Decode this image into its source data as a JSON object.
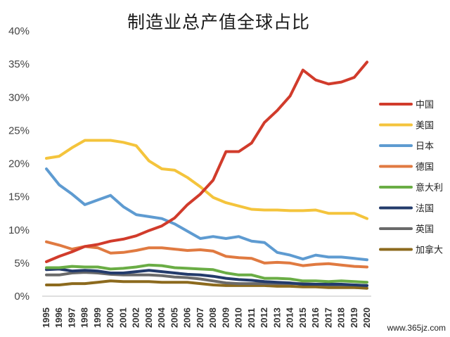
{
  "chart_data": {
    "type": "line",
    "title": "制造业总产值全球占比",
    "xlabel": "",
    "ylabel": "",
    "x": [
      "1995",
      "1996",
      "1997",
      "1998",
      "1999",
      "2000",
      "2001",
      "2002",
      "2003",
      "2004",
      "2005",
      "2006",
      "2007",
      "2008",
      "2009",
      "2010",
      "2011",
      "2012",
      "2013",
      "2014",
      "2015",
      "2016",
      "2017",
      "2018",
      "2019",
      "2020"
    ],
    "ylim": [
      0,
      40
    ],
    "yticks": [
      "0%",
      "5%",
      "10%",
      "15%",
      "20%",
      "25%",
      "30%",
      "35%",
      "40%"
    ],
    "grid": false,
    "legend_position": "right",
    "series": [
      {
        "name": "中国",
        "color": "#d13b2b",
        "values": [
          5.2,
          6.0,
          6.7,
          7.5,
          7.8,
          8.3,
          8.6,
          9.1,
          9.9,
          10.6,
          11.8,
          13.8,
          15.4,
          17.5,
          21.8,
          21.8,
          23.1,
          26.2,
          28.0,
          30.2,
          34.1,
          32.6,
          32.0,
          32.3,
          33.0,
          35.3
        ]
      },
      {
        "name": "美国",
        "color": "#f4c43c",
        "values": [
          20.8,
          21.1,
          22.4,
          23.5,
          23.5,
          23.5,
          23.2,
          22.7,
          20.4,
          19.2,
          19.0,
          17.9,
          16.5,
          14.9,
          14.1,
          13.6,
          13.1,
          13.0,
          13.0,
          12.9,
          12.9,
          13.0,
          12.5,
          12.5,
          12.5,
          11.7
        ]
      },
      {
        "name": "日本",
        "color": "#5e9bd1",
        "values": [
          19.2,
          16.8,
          15.4,
          13.8,
          14.5,
          15.2,
          13.5,
          12.3,
          12.0,
          11.7,
          10.9,
          9.8,
          8.7,
          9.0,
          8.7,
          9.0,
          8.3,
          8.1,
          6.6,
          6.2,
          5.6,
          6.2,
          5.9,
          5.9,
          5.7,
          5.5
        ]
      },
      {
        "name": "德国",
        "color": "#e07a41",
        "values": [
          8.2,
          7.7,
          7.1,
          7.5,
          7.3,
          6.5,
          6.6,
          6.9,
          7.3,
          7.3,
          7.1,
          6.9,
          7.0,
          6.8,
          6.0,
          5.8,
          5.7,
          5.0,
          5.1,
          5.0,
          4.6,
          4.8,
          4.9,
          4.7,
          4.5,
          4.4
        ]
      },
      {
        "name": "意大利",
        "color": "#6aad45",
        "values": [
          4.3,
          4.3,
          4.5,
          4.4,
          4.4,
          4.1,
          4.2,
          4.4,
          4.7,
          4.6,
          4.3,
          4.2,
          4.1,
          4.0,
          3.5,
          3.2,
          3.2,
          2.7,
          2.7,
          2.6,
          2.3,
          2.3,
          2.2,
          2.3,
          2.2,
          2.1
        ]
      },
      {
        "name": "法国",
        "color": "#233b6b",
        "values": [
          4.0,
          4.1,
          3.8,
          3.9,
          3.8,
          3.5,
          3.5,
          3.7,
          3.9,
          3.7,
          3.5,
          3.3,
          3.2,
          3.0,
          2.7,
          2.5,
          2.4,
          2.2,
          2.1,
          2.0,
          1.8,
          1.8,
          1.8,
          1.8,
          1.7,
          1.6
        ]
      },
      {
        "name": "英国",
        "color": "#6a6a6a",
        "values": [
          3.2,
          3.2,
          3.5,
          3.6,
          3.5,
          3.3,
          3.2,
          3.2,
          3.2,
          3.1,
          2.9,
          2.8,
          2.6,
          2.3,
          2.0,
          1.9,
          1.9,
          1.9,
          1.9,
          1.9,
          1.9,
          1.8,
          1.7,
          1.7,
          1.7,
          1.6
        ]
      },
      {
        "name": "加拿大",
        "color": "#8c6a1e",
        "values": [
          1.7,
          1.7,
          1.9,
          1.9,
          2.1,
          2.3,
          2.2,
          2.2,
          2.2,
          2.1,
          2.1,
          2.1,
          1.9,
          1.7,
          1.6,
          1.6,
          1.6,
          1.6,
          1.5,
          1.5,
          1.4,
          1.4,
          1.3,
          1.3,
          1.3,
          1.2
        ]
      }
    ]
  },
  "watermark": "www.365jz.com"
}
